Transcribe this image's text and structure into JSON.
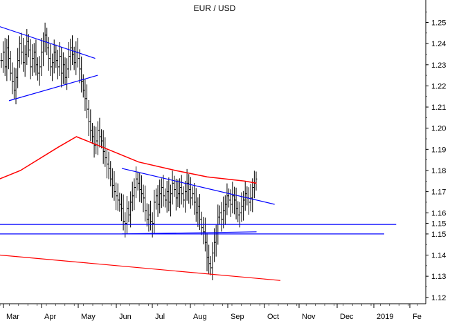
{
  "chart_data": {
    "type": "ohlc",
    "title": "EUR / USD",
    "x_tick_labels": [
      "Mar",
      "Apr",
      "May",
      "Jun",
      "Jul",
      "Aug",
      "Sep",
      "Oct",
      "Nov",
      "Dec",
      "2019",
      "Fe"
    ],
    "y_tick_labels": [
      "1.12",
      "1.13",
      "1.14",
      "1.15",
      "1.15",
      "1.16",
      "1.17",
      "1.18",
      "1.19",
      "1.20",
      "1.21",
      "1.22",
      "1.23",
      "1.24",
      "1.25"
    ],
    "ylim": [
      1.117,
      1.258
    ],
    "grid": false,
    "y_axis_side": "right",
    "price_closes": [
      1.232,
      1.236,
      1.229,
      1.238,
      1.233,
      1.226,
      1.222,
      1.218,
      1.224,
      1.232,
      1.24,
      1.236,
      1.231,
      1.235,
      1.241,
      1.237,
      1.229,
      1.233,
      1.236,
      1.23,
      1.226,
      1.229,
      1.236,
      1.241,
      1.244,
      1.238,
      1.233,
      1.229,
      1.231,
      1.236,
      1.232,
      1.229,
      1.234,
      1.226,
      1.23,
      1.224,
      1.228,
      1.234,
      1.238,
      1.235,
      1.231,
      1.236,
      1.233,
      1.228,
      1.222,
      1.218,
      1.214,
      1.209,
      1.203,
      1.199,
      1.196,
      1.192,
      1.194,
      1.199,
      1.196,
      1.194,
      1.189,
      1.186,
      1.183,
      1.181,
      1.176,
      1.173,
      1.17,
      1.168,
      1.166,
      1.164,
      1.162,
      1.156,
      1.155,
      1.162,
      1.159,
      1.165,
      1.168,
      1.172,
      1.176,
      1.174,
      1.171,
      1.169,
      1.167,
      1.161,
      1.157,
      1.159,
      1.156,
      1.155,
      1.165,
      1.168,
      1.164,
      1.169,
      1.172,
      1.168,
      1.166,
      1.17,
      1.165,
      1.169,
      1.174,
      1.171,
      1.167,
      1.169,
      1.172,
      1.169,
      1.166,
      1.17,
      1.174,
      1.171,
      1.167,
      1.169,
      1.165,
      1.16,
      1.163,
      1.157,
      1.153,
      1.151,
      1.146,
      1.139,
      1.136,
      1.134,
      1.141,
      1.146,
      1.15,
      1.158,
      1.16,
      1.157,
      1.161,
      1.164,
      1.168,
      1.166,
      1.164,
      1.168,
      1.166,
      1.162,
      1.159,
      1.16,
      1.163,
      1.166,
      1.169,
      1.167,
      1.165,
      1.167,
      1.172,
      1.174,
      1.176
    ],
    "series": [
      {
        "name": "",
        "color": "#ff0000",
        "type": "moving-average",
        "points": [
          [
            "Feb-15",
            1.174
          ],
          [
            "Mar-10",
            1.18
          ],
          [
            "Apr-10",
            1.191
          ],
          [
            "Apr-25",
            1.196
          ],
          [
            "May-20",
            1.19
          ],
          [
            "Jun-15",
            1.184
          ],
          [
            "Jul-15",
            1.18
          ],
          [
            "Aug-10",
            1.177
          ],
          [
            "Sep-10",
            1.175
          ],
          [
            "Sep-20",
            1.174
          ]
        ]
      }
    ],
    "trendlines": [
      {
        "color": "#0000ff",
        "from": [
          "Feb-15",
          1.248
        ],
        "to": [
          "May-10",
          1.233
        ]
      },
      {
        "color": "#0000ff",
        "from": [
          "Mar-01",
          1.213
        ],
        "to": [
          "May-12",
          1.225
        ]
      },
      {
        "color": "#0000ff",
        "from": [
          "Jun-01",
          1.181
        ],
        "to": [
          "Oct-05",
          1.164
        ]
      },
      {
        "color": "#0000ff",
        "from": [
          "Jun-01",
          1.15
        ],
        "to": [
          "Sep-20",
          1.151
        ]
      },
      {
        "color": "#0000ff",
        "from": [
          "Feb-15",
          1.1545
        ],
        "to": [
          "Jan-15",
          1.1545
        ]
      },
      {
        "color": "#0000ff",
        "from": [
          "Feb-15",
          1.15
        ],
        "to": [
          "Jan-05",
          1.15
        ]
      },
      {
        "color": "#ff0000",
        "from": [
          "Feb-15",
          1.14
        ],
        "to": [
          "Oct-10",
          1.128
        ]
      }
    ]
  }
}
